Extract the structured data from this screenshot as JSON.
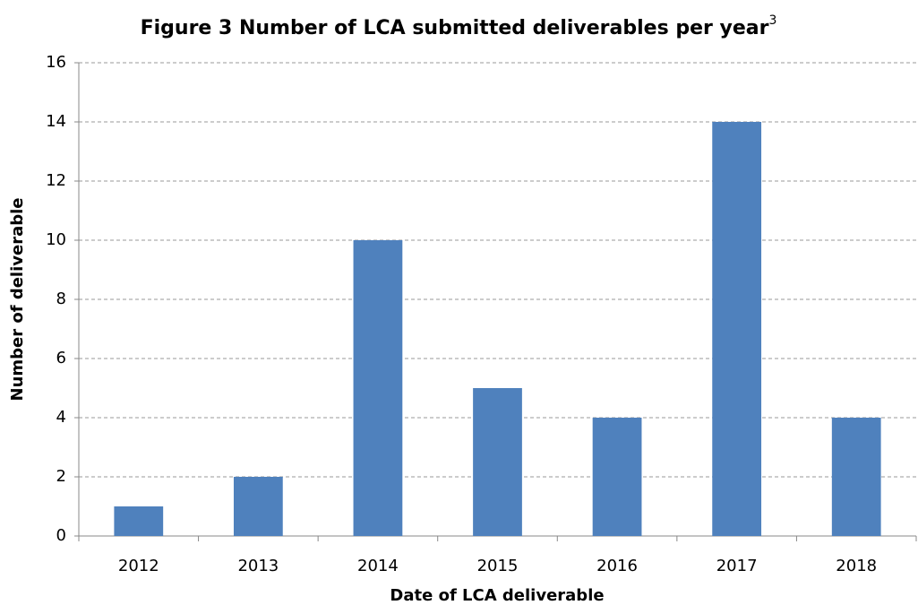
{
  "chart_data": {
    "type": "bar",
    "title": "Figure 3 Number of LCA submitted deliverables per year",
    "title_superscript": "3",
    "x_label": "Date of LCA deliverable",
    "y_label": "Number of deliverable",
    "categories": [
      "2012",
      "2013",
      "2014",
      "2015",
      "2016",
      "2017",
      "2018"
    ],
    "values": [
      1,
      2,
      10,
      5,
      4,
      14,
      4
    ],
    "color": "#4f81bd",
    "ylim": [
      0,
      16
    ],
    "yticks": [
      0,
      2,
      4,
      6,
      8,
      10,
      12,
      14,
      16
    ],
    "grid": true
  }
}
